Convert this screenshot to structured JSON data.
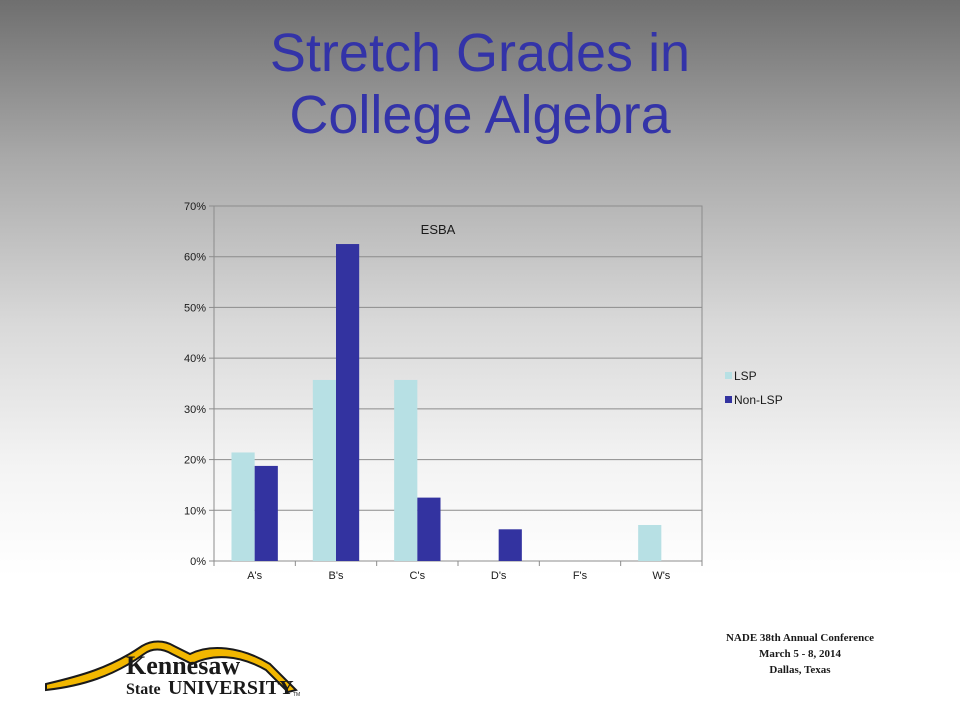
{
  "slide": {
    "title_line1": "Stretch Grades in",
    "title_line2": "College Algebra"
  },
  "chart_data": {
    "type": "bar",
    "title": "ESBA",
    "categories": [
      "A's",
      "B's",
      "C's",
      "D's",
      "F's",
      "W's"
    ],
    "series": [
      {
        "name": "LSP",
        "color": "#b7e0e4",
        "values": [
          0.214,
          0.357,
          0.357,
          0.0,
          0.0,
          0.071
        ]
      },
      {
        "name": "Non-LSP",
        "color": "#3333a0",
        "values": [
          0.1875,
          0.625,
          0.125,
          0.0625,
          0.0,
          0.0
        ]
      }
    ],
    "ylim": [
      0,
      0.7
    ],
    "yticks": [
      "0%",
      "10%",
      "20%",
      "30%",
      "40%",
      "50%",
      "60%",
      "70%"
    ],
    "grid": true,
    "legend_position": "right"
  },
  "footer": {
    "line1": "NADE 38th Annual Conference",
    "line2": "March  5 - 8, 2014",
    "line3": "Dallas, Texas"
  },
  "logo": {
    "word1": "Kennesaw",
    "word2": "State",
    "word3": "UNIVERSITY",
    "mark": "TM",
    "primary_color": "#1a1a1a",
    "accent_color": "#f2b700"
  }
}
